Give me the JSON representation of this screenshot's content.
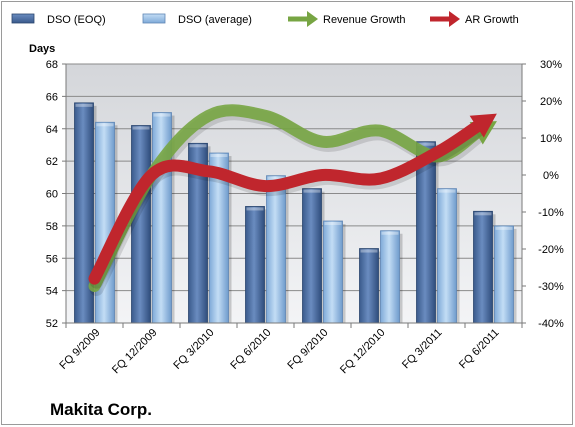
{
  "chart_data": {
    "type": "bar",
    "title": "Makita Corp.",
    "ylabel": "Days",
    "ylim": [
      52,
      68
    ],
    "y_ticks": [
      "52",
      "54",
      "56",
      "58",
      "60",
      "62",
      "64",
      "66",
      "68"
    ],
    "y2lim": [
      -40,
      30
    ],
    "y2_ticks": [
      "-40%",
      "-30%",
      "-20%",
      "-10%",
      "0%",
      "10%",
      "20%",
      "30%"
    ],
    "categories": [
      "FQ 9/2009",
      "FQ 12/2009",
      "FQ 3/2010",
      "FQ 6/2010",
      "FQ 9/2010",
      "FQ 12/2010",
      "FQ 3/2011",
      "FQ 6/2011"
    ],
    "grid": true,
    "legend_position": "top",
    "series": [
      {
        "name": "DSO (EOQ)",
        "type": "bar",
        "axis": "left",
        "color": "#4a6da0",
        "values": [
          65.6,
          64.2,
          63.1,
          59.2,
          60.3,
          56.6,
          63.2,
          58.9
        ]
      },
      {
        "name": "DSO (average)",
        "type": "bar",
        "axis": "left",
        "color": "#9fc4e8",
        "values": [
          64.4,
          65.0,
          62.5,
          61.1,
          58.3,
          57.7,
          60.3,
          58.0
        ]
      },
      {
        "name": "Revenue Growth",
        "type": "line",
        "axis": "right",
        "color": "#77a543",
        "values": [
          -30,
          0,
          16,
          16,
          9,
          12,
          5,
          14
        ]
      },
      {
        "name": "AR Growth",
        "type": "line",
        "axis": "right",
        "color": "#c0262d",
        "values": [
          -28,
          0,
          1,
          -3,
          0,
          -1,
          6,
          16
        ]
      }
    ]
  }
}
